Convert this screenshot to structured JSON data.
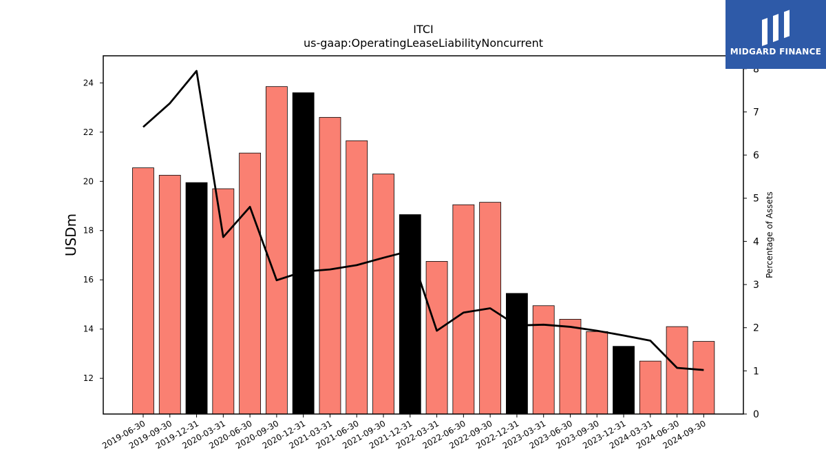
{
  "chart_data": {
    "type": "bar",
    "title": "ITCI",
    "subtitle": "us-gaap:OperatingLeaseLiabilityNoncurrent",
    "ylabel": "USDm",
    "y2label": "Percentage of Assets",
    "ylim": [
      10.55,
      25.1
    ],
    "y2lim": [
      0,
      8.3
    ],
    "yticks": [
      12,
      14,
      16,
      18,
      20,
      22,
      24
    ],
    "y2ticks": [
      0,
      1,
      2,
      3,
      4,
      5,
      6,
      7,
      8
    ],
    "categories": [
      "2019-06-30",
      "2019-09-30",
      "2019-12-31",
      "2020-03-31",
      "2020-06-30",
      "2020-09-30",
      "2020-12-31",
      "2021-03-31",
      "2021-06-30",
      "2021-09-30",
      "2021-12-31",
      "2022-03-31",
      "2022-06-30",
      "2022-09-30",
      "2022-12-31",
      "2023-03-31",
      "2023-06-30",
      "2023-09-30",
      "2023-12-31",
      "2024-03-31",
      "2024-06-30",
      "2024-09-30"
    ],
    "values": [
      20.55,
      20.25,
      19.95,
      19.7,
      21.15,
      23.85,
      23.6,
      22.6,
      21.65,
      20.3,
      18.65,
      16.75,
      19.05,
      19.15,
      15.45,
      14.95,
      14.4,
      13.9,
      13.3,
      12.7,
      14.1,
      13.5
    ],
    "year_end_flags": [
      false,
      false,
      true,
      false,
      false,
      false,
      true,
      false,
      false,
      false,
      true,
      false,
      false,
      false,
      true,
      false,
      false,
      false,
      true,
      false,
      false,
      false
    ],
    "series": [
      {
        "name": "",
        "values": [
          6.65,
          7.2,
          7.95,
          4.1,
          4.8,
          3.1,
          3.3,
          3.35,
          3.45,
          3.62,
          3.78,
          1.93,
          2.35,
          2.45,
          2.05,
          2.07,
          2.02,
          1.93,
          1.82,
          1.7,
          1.07,
          1.02
        ]
      }
    ],
    "colors": {
      "bar": "#fa8072",
      "bar_year_end": "#000000",
      "line": "#000000"
    },
    "grid": false
  },
  "logo": {
    "text": "MIDGARD FINANCE",
    "color": "#2e5aa8"
  }
}
